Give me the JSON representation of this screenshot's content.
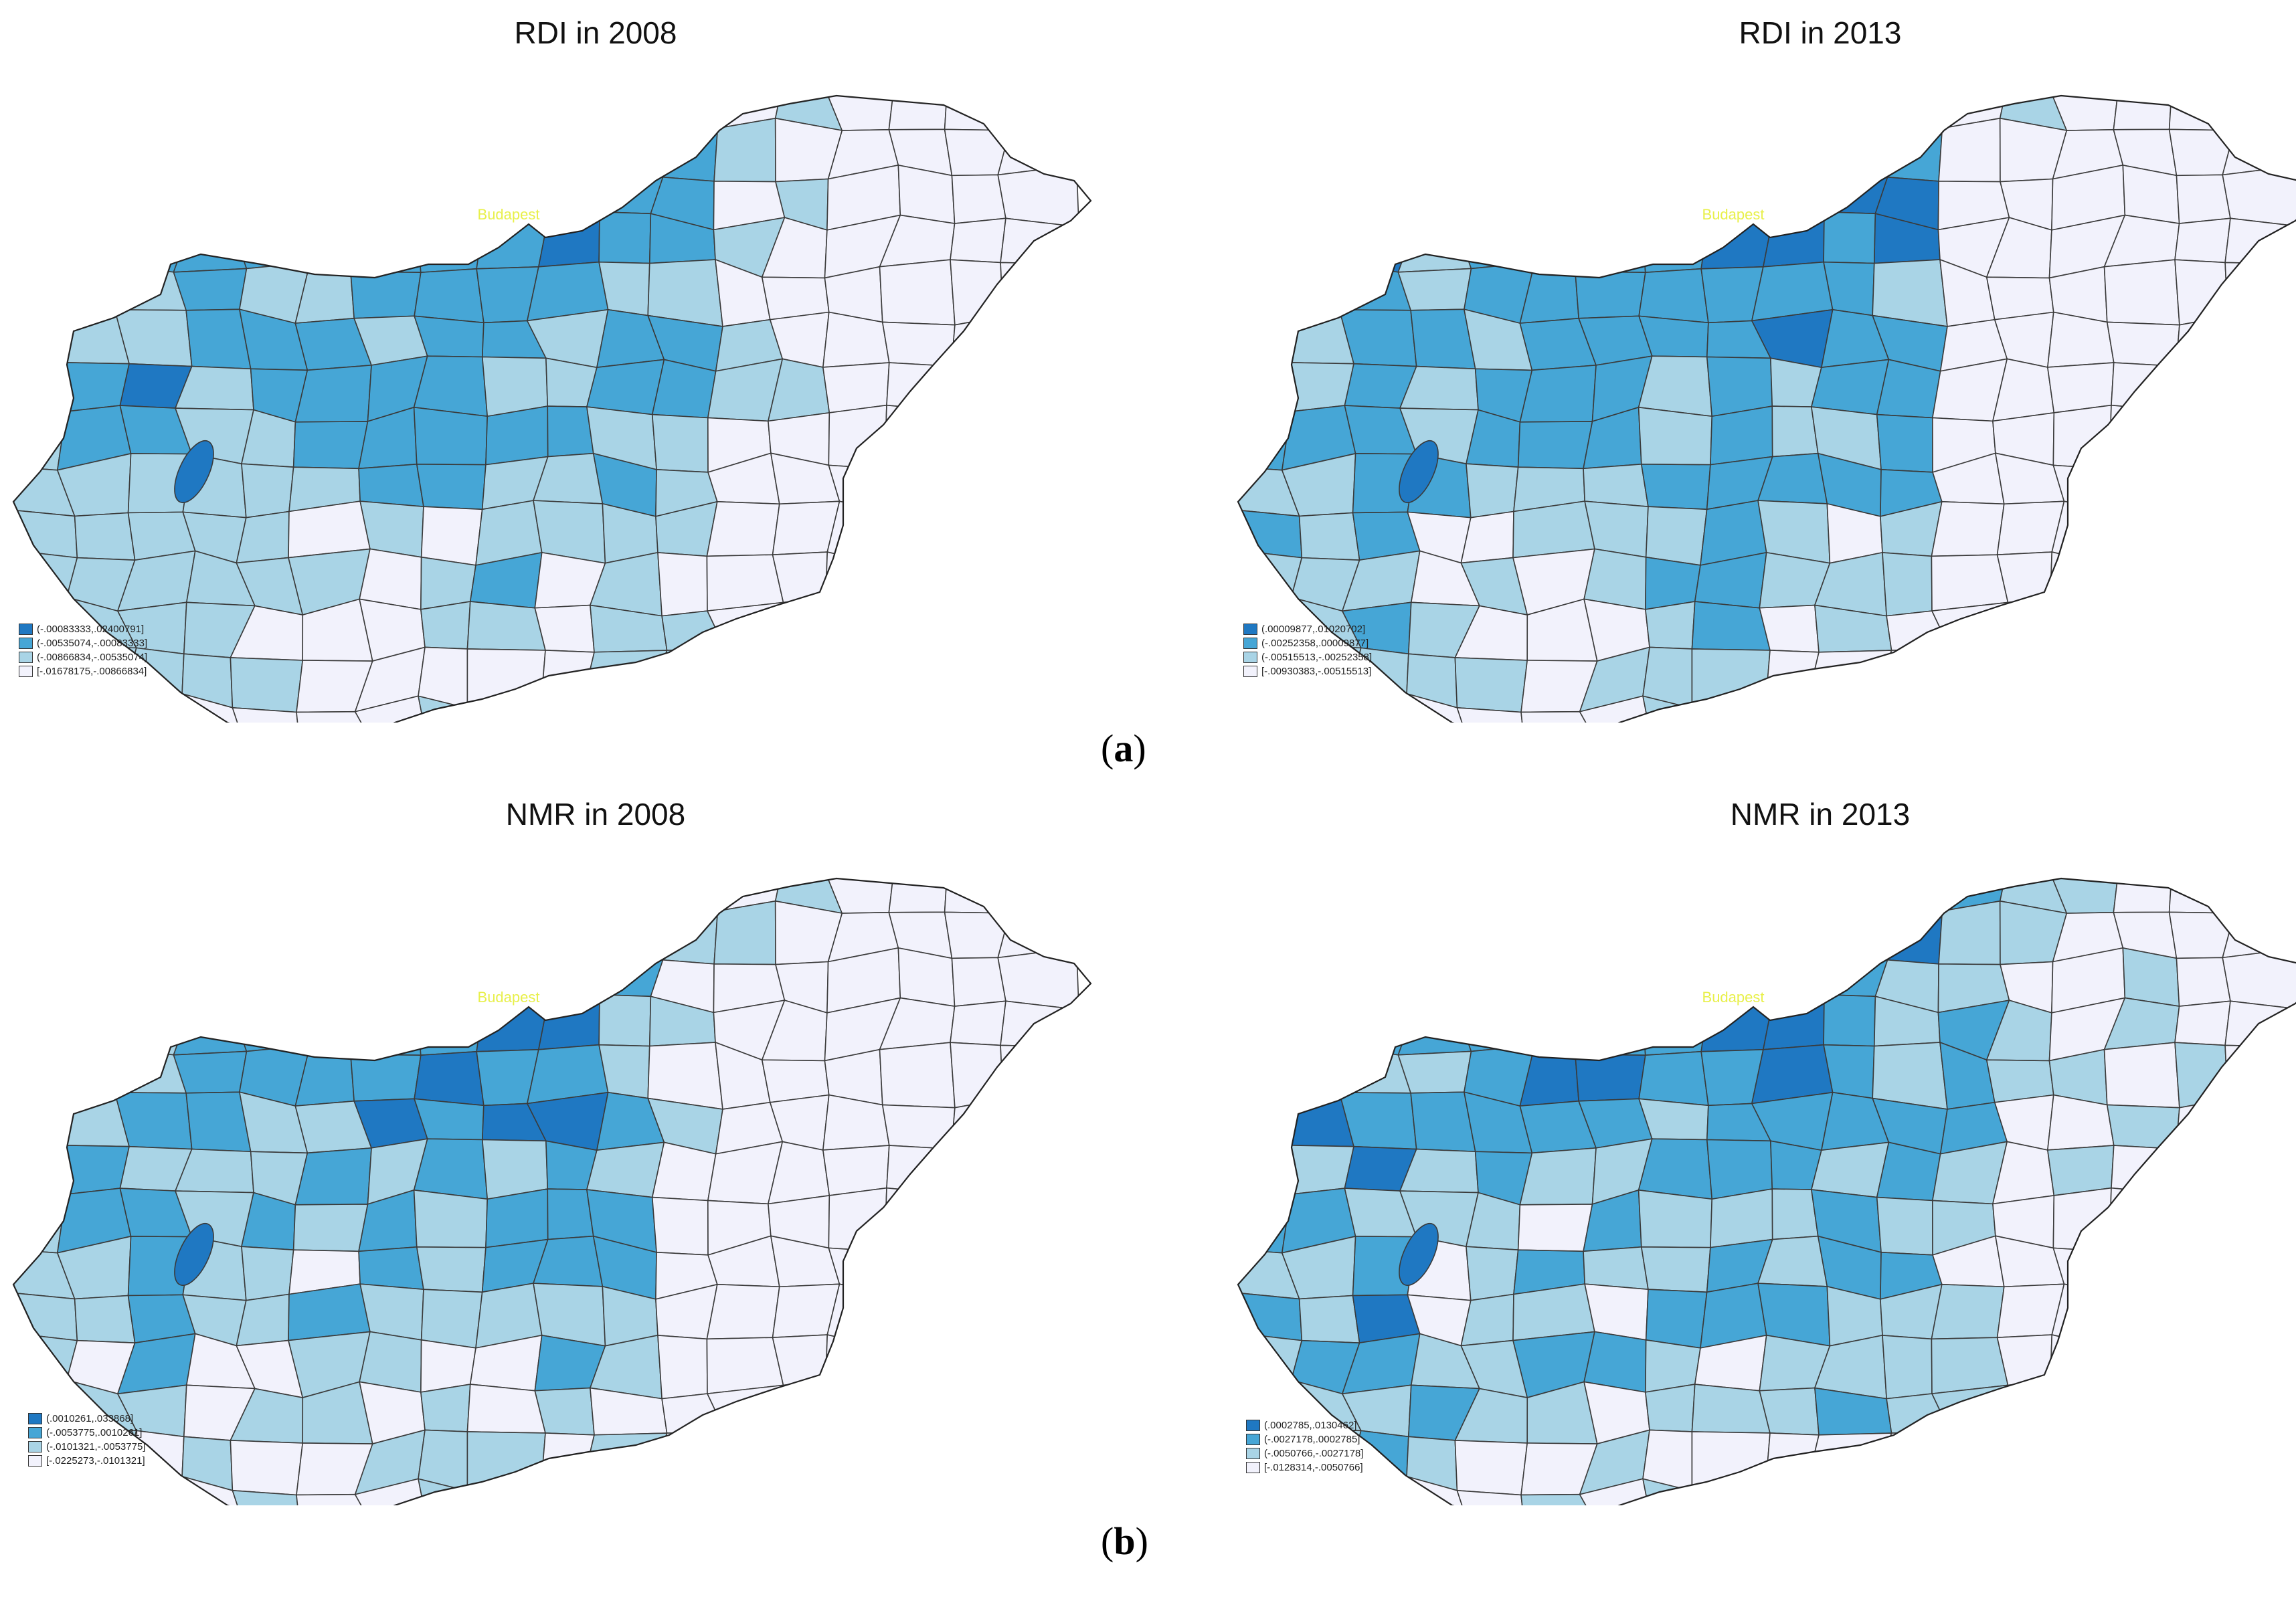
{
  "colors": {
    "class4": "#1f78c2",
    "class3": "#46a6d6",
    "class2": "#a9d4e6",
    "class1": "#f2f2fc",
    "border": "#3a3a3a",
    "city": "#e8f04a"
  },
  "city_label": "Budapest",
  "captions": {
    "a_open": "(",
    "a_letter": "a",
    "a_close": ")",
    "b_open": "(",
    "b_letter": "b",
    "b_close": ")"
  },
  "maps": [
    {
      "title": "RDI in 2008",
      "legend": [
        "(-.00083333,.02400791]",
        "(-.00535074,-.00083333]",
        "(-.00866834,-.00535074]",
        "[-.01678175,-.00866834]"
      ]
    },
    {
      "title": "RDI in 2013",
      "legend": [
        "(.00009877,.01020702]",
        "(-.00252358,.00009877]",
        "(-.00515513,-.00252358]",
        "[-.00930383,-.00515513]"
      ]
    },
    {
      "title": "NMR in 2008",
      "legend": [
        "(.0010261,.033868]",
        "(-.0053775,.0010261]",
        "(-.0101321,-.0053775]",
        "[-.0225273,-.0101321]"
      ]
    },
    {
      "title": "NMR in 2013",
      "legend": [
        "(.0002785,.0130462]",
        "(-.0027178,.0002785]",
        "(-.0050766,-.0027178]",
        "[-.0128314,-.0050766]"
      ]
    }
  ]
}
